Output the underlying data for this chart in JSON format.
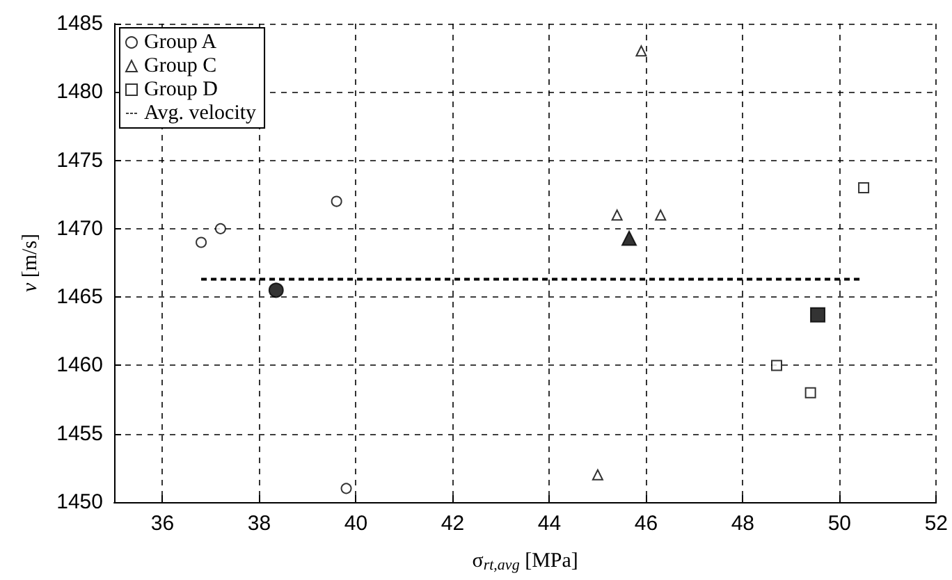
{
  "chart_data": {
    "type": "scatter",
    "xlabel": "σ$_{rt,avg}$ [MPa]",
    "ylabel": "v [m/s]",
    "xlim": [
      35,
      52
    ],
    "xticks": [
      36,
      38,
      40,
      42,
      44,
      46,
      48,
      50,
      52
    ],
    "ylim": [
      1450,
      1485
    ],
    "yticks": [
      1450,
      1455,
      1460,
      1465,
      1470,
      1475,
      1480,
      1485
    ],
    "grid": true,
    "legend": "top left",
    "series": [
      {
        "name": "Group A",
        "color": "#000000",
        "marker": "circle",
        "x": [
          36.8,
          37.2,
          39.6,
          39.8
        ],
        "values": [
          1469,
          1470,
          1472,
          1451
        ]
      },
      {
        "name": "Group C",
        "color": "#000000",
        "marker": "triangle",
        "x": [
          45.9,
          45.4,
          46.3,
          45.0
        ],
        "values": [
          1483,
          1471,
          1471,
          1452
        ]
      },
      {
        "name": "Group D",
        "color": "#000000",
        "marker": "square",
        "x": [
          50.5,
          48.7,
          49.4
        ],
        "values": [
          1473,
          1460,
          1458
        ]
      },
      {
        "name": "Avg. velocity",
        "type": "line",
        "line_style": "dashed",
        "marker": "none",
        "color": "#000000",
        "x": [
          36.8,
          50.5
        ],
        "values": [
          1466.3,
          1466.3
        ]
      },
      {
        "color": "#000000",
        "marker": "circle",
        "x": [
          38.35
        ],
        "values": [
          1465.5
        ]
      },
      {
        "color": "#000000",
        "marker": "triangle",
        "x": [
          45.65
        ],
        "values": [
          1469.3
        ]
      },
      {
        "color": "#000000",
        "marker": "square",
        "x": [
          49.55
        ],
        "values": [
          1463.7
        ]
      }
    ]
  }
}
